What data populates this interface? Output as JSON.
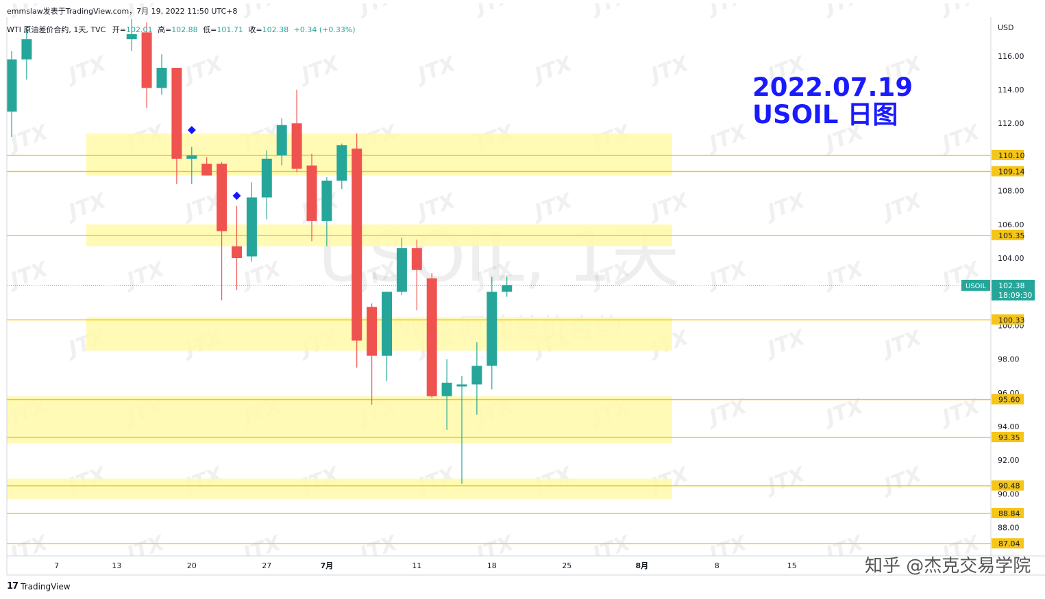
{
  "header": {
    "top_line": "emmslaw发表于TradingView.com，7月 19, 2022 11:50 UTC+8",
    "symbol_line": "WTI 原油差价合约, 1天, TVC",
    "open_label": "开=",
    "open_value": "102.01",
    "high_label": "高=",
    "high_value": "102.88",
    "low_label": "低=",
    "low_value": "101.71",
    "close_label": "收=",
    "close_value": "102.38",
    "change": "+0.34 (+0.33%)"
  },
  "title": {
    "line1": "2022.07.19",
    "line2": "USOIL 日图"
  },
  "watermark": {
    "main": "USOIL, 1天",
    "sub": "WTI 原油差价合约",
    "logo": "JTX"
  },
  "footer": {
    "logo_mark": "17",
    "logo_text": "TradingView",
    "credit": "知乎 @杰克交易学院"
  },
  "colors": {
    "up": "#26a69a",
    "down": "#ef5350",
    "level_line": "#f5c518",
    "zone": "#fff9a8",
    "marker": "#1515ff",
    "title": "#1a1aff"
  },
  "chart_data": {
    "type": "candlestick",
    "currency_label": "USD",
    "y_ticks": [
      88,
      90,
      92,
      94,
      96,
      98,
      100,
      104,
      106,
      108,
      112,
      114,
      116
    ],
    "x_ticks": [
      {
        "label": "7",
        "x": 3
      },
      {
        "label": "13",
        "x": 7
      },
      {
        "label": "20",
        "x": 12
      },
      {
        "label": "27",
        "x": 17
      },
      {
        "label": "7月",
        "x": 21
      },
      {
        "label": "11",
        "x": 27
      },
      {
        "label": "18",
        "x": 32
      },
      {
        "label": "25",
        "x": 37
      },
      {
        "label": "8月",
        "x": 42
      },
      {
        "label": "8",
        "x": 47
      },
      {
        "label": "15",
        "x": 52
      }
    ],
    "candles": [
      {
        "x": 0,
        "o": 112.7,
        "h": 116.3,
        "l": 111.2,
        "c": 115.8
      },
      {
        "x": 1,
        "o": 115.8,
        "h": 117.7,
        "l": 114.6,
        "c": 117.0
      },
      {
        "x": 8,
        "o": 117.0,
        "h": 118.2,
        "l": 116.3,
        "c": 117.3
      },
      {
        "x": 9,
        "o": 117.4,
        "h": 118.0,
        "l": 112.9,
        "c": 114.1
      },
      {
        "x": 10,
        "o": 114.1,
        "h": 116.1,
        "l": 113.7,
        "c": 115.3
      },
      {
        "x": 11,
        "o": 115.3,
        "h": 115.3,
        "l": 108.4,
        "c": 109.9
      },
      {
        "x": 12,
        "o": 109.9,
        "h": 110.6,
        "l": 108.4,
        "c": 110.1
      },
      {
        "x": 13,
        "o": 109.6,
        "h": 110.0,
        "l": 108.9,
        "c": 108.9
      },
      {
        "x": 14,
        "o": 109.6,
        "h": 109.7,
        "l": 101.5,
        "c": 105.6
      },
      {
        "x": 15,
        "o": 104.7,
        "h": 107.1,
        "l": 102.1,
        "c": 104.0
      },
      {
        "x": 16,
        "o": 104.1,
        "h": 108.5,
        "l": 103.8,
        "c": 107.6
      },
      {
        "x": 17,
        "o": 107.6,
        "h": 110.4,
        "l": 106.3,
        "c": 109.9
      },
      {
        "x": 18,
        "o": 110.1,
        "h": 112.3,
        "l": 109.5,
        "c": 111.9
      },
      {
        "x": 19,
        "o": 112.0,
        "h": 114.0,
        "l": 109.1,
        "c": 109.3
      },
      {
        "x": 20,
        "o": 109.5,
        "h": 110.2,
        "l": 105.0,
        "c": 106.2
      },
      {
        "x": 21,
        "o": 106.2,
        "h": 108.8,
        "l": 104.7,
        "c": 108.6
      },
      {
        "x": 22,
        "o": 108.6,
        "h": 110.8,
        "l": 108.1,
        "c": 110.7
      },
      {
        "x": 23,
        "o": 110.5,
        "h": 111.4,
        "l": 97.5,
        "c": 99.1
      },
      {
        "x": 24,
        "o": 101.1,
        "h": 101.3,
        "l": 95.3,
        "c": 98.2
      },
      {
        "x": 25,
        "o": 98.2,
        "h": 102.0,
        "l": 96.7,
        "c": 102.0
      },
      {
        "x": 26,
        "o": 102.0,
        "h": 105.2,
        "l": 101.8,
        "c": 104.6
      },
      {
        "x": 27,
        "o": 104.6,
        "h": 105.1,
        "l": 100.9,
        "c": 103.3
      },
      {
        "x": 28,
        "o": 102.8,
        "h": 103.1,
        "l": 95.7,
        "c": 95.8
      },
      {
        "x": 29,
        "o": 95.8,
        "h": 98.0,
        "l": 93.8,
        "c": 96.6
      },
      {
        "x": 30,
        "o": 96.4,
        "h": 97.0,
        "l": 90.6,
        "c": 96.5
      },
      {
        "x": 31,
        "o": 96.5,
        "h": 99.0,
        "l": 94.7,
        "c": 97.6
      },
      {
        "x": 32,
        "o": 97.6,
        "h": 102.9,
        "l": 96.2,
        "c": 102.0
      },
      {
        "x": 33,
        "o": 102.0,
        "h": 102.9,
        "l": 101.7,
        "c": 102.4
      }
    ],
    "levels": [
      110.1,
      109.14,
      105.35,
      100.33,
      95.6,
      93.35,
      90.48,
      88.84,
      87.04
    ],
    "zones": [
      {
        "low": 108.9,
        "high": 111.4
      },
      {
        "low": 104.7,
        "high": 106.0
      },
      {
        "low": 98.5,
        "high": 100.5
      },
      {
        "low": 93.0,
        "high": 95.8
      },
      {
        "low": 89.7,
        "high": 90.9
      }
    ],
    "zone_x_end": 44,
    "markers": [
      {
        "x": 12,
        "y": 111.6
      },
      {
        "x": 15,
        "y": 107.7
      }
    ],
    "current": {
      "symbol": "USOIL",
      "price": "102.38",
      "countdown": "18:09:30"
    }
  }
}
